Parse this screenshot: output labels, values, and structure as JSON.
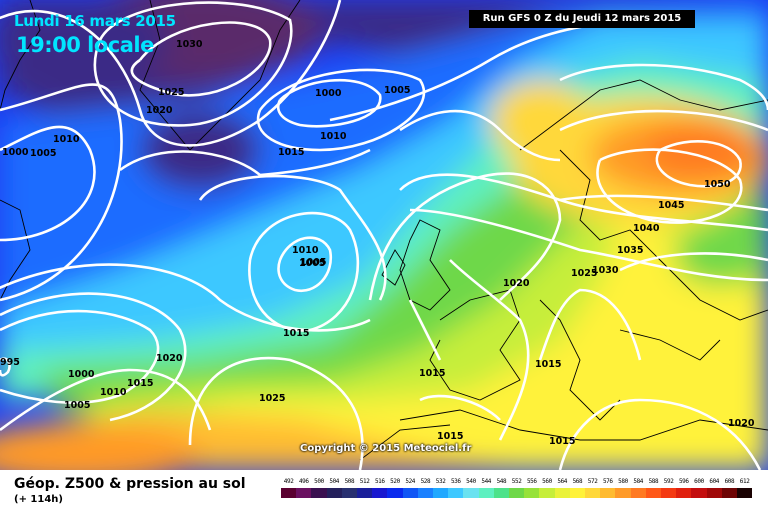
{
  "header": {
    "date": "Lundi 16 mars 2015",
    "time": "19:00 locale",
    "run": "Run GFS 0 Z du Jeudi 12 mars 2015"
  },
  "copyright": "Copyright © 2015 Meteociel.fr",
  "footer": {
    "title": "Géop. Z500 & pression au sol",
    "lead": "(+ 114h)"
  },
  "scale": {
    "labels": [
      "492",
      "496",
      "500",
      "504",
      "508",
      "512",
      "516",
      "520",
      "524",
      "528",
      "532",
      "536",
      "540",
      "544",
      "548",
      "552",
      "556",
      "560",
      "564",
      "568",
      "572",
      "576",
      "580",
      "584",
      "588",
      "592",
      "596",
      "600",
      "604",
      "608",
      "612"
    ],
    "colors": [
      "#5a0030",
      "#6a1060",
      "#3a1050",
      "#24205c",
      "#283070",
      "#1a1f9a",
      "#1818d0",
      "#0a2aee",
      "#1056f5",
      "#1a80ff",
      "#20a8ff",
      "#3ec8ff",
      "#6ae2f0",
      "#5ef0c0",
      "#4de28a",
      "#6ed848",
      "#96e23a",
      "#c6ee3a",
      "#eaf23a",
      "#fff23a",
      "#ffd83a",
      "#ffbb30",
      "#ff9a28",
      "#ff7a22",
      "#ff5818",
      "#f43a12",
      "#e0200e",
      "#c40e0e",
      "#a00808",
      "#6e0404",
      "#1a0202"
    ]
  },
  "isobars": [
    "1030",
    "1025",
    "1020",
    "1000",
    "1005",
    "1010",
    "1005",
    "1000",
    "1010",
    "1015",
    "1005",
    "1010",
    "1005",
    "1015",
    "1020",
    "1020",
    "1000",
    "1015",
    "1010",
    "1005",
    "995",
    "1025",
    "1015",
    "1015",
    "1015",
    "1025",
    "1030",
    "1035",
    "1040",
    "1045",
    "1050",
    "1020",
    "1015"
  ]
}
